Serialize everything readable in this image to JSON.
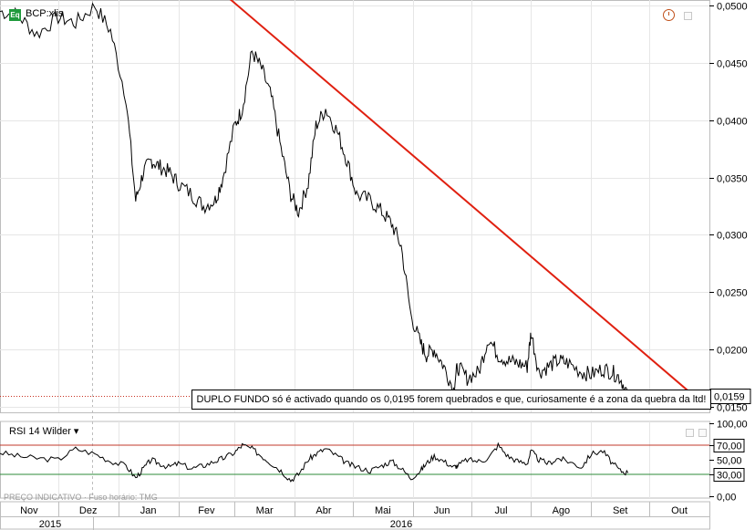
{
  "header": {
    "symbol_badge": "Eq",
    "symbol": "BCP:xlis"
  },
  "annotation": "DUPLO FUNDO só é activado quando os 0,0195 forem quebrados e que, curiosamente é a zona da quebra da ltd!",
  "rsi": {
    "label": "RSI 14 Wilder ▾"
  },
  "footer": {
    "text": "PREÇO INDICATIVO · Fuso horário: TMG"
  },
  "colors": {
    "price_line": "#000000",
    "trendline": "#e02010",
    "last_price_line": "#c83020",
    "rsi_upper": "#c0392b",
    "rsi_lower": "#2e8b3a"
  },
  "chart_data": [
    {
      "type": "line",
      "title": "BCP:xlis",
      "x_axis": {
        "months": [
          "Nov",
          "Dez",
          "Jan",
          "Fev",
          "Mar",
          "Abr",
          "Mai",
          "Jun",
          "Jul",
          "Ago",
          "Set",
          "Out"
        ],
        "years": [
          "2015",
          "2016"
        ]
      },
      "y_axis": {
        "ticks": [
          "0,0500",
          "0,0450",
          "0,0400",
          "0,0350",
          "0,0300",
          "0,0250",
          "0,0200",
          "0,0150"
        ],
        "tick_values": [
          0.05,
          0.045,
          0.04,
          0.035,
          0.03,
          0.025,
          0.02,
          0.015
        ],
        "range": [
          0.0145,
          0.0505
        ]
      },
      "last_price": {
        "value": 0.0159,
        "label": "0,0159"
      },
      "series": [
        {
          "x": [
            "2015-11-01",
            "2015-11-10",
            "2015-11-20",
            "2015-12-01",
            "2015-12-10",
            "2015-12-20",
            "2015-12-28",
            "2016-01-05",
            "2016-01-10",
            "2016-01-14",
            "2016-01-18",
            "2016-01-22",
            "2016-01-27",
            "2016-02-01",
            "2016-02-08",
            "2016-02-14",
            "2016-02-20",
            "2016-02-24",
            "2016-03-01",
            "2016-03-05",
            "2016-03-10",
            "2016-03-15",
            "2016-03-20",
            "2016-03-25",
            "2016-03-30",
            "2016-04-03",
            "2016-04-08",
            "2016-04-12",
            "2016-04-17",
            "2016-04-23",
            "2016-04-28",
            "2016-05-03",
            "2016-05-10",
            "2016-05-16",
            "2016-05-21",
            "2016-05-26",
            "2016-05-31",
            "2016-06-05",
            "2016-06-08",
            "2016-06-12",
            "2016-06-17",
            "2016-06-22",
            "2016-06-24",
            "2016-06-29",
            "2016-07-05",
            "2016-07-10",
            "2016-07-15",
            "2016-07-20",
            "2016-07-25",
            "2016-07-30",
            "2016-08-01",
            "2016-08-05",
            "2016-08-10",
            "2016-08-15",
            "2016-08-20",
            "2016-08-27",
            "2016-09-01",
            "2016-09-07",
            "2016-09-12",
            "2016-09-16",
            "2016-09-20"
          ],
          "y": [
            0.0495,
            0.0492,
            0.0475,
            0.049,
            0.0485,
            0.05,
            0.0478,
            0.042,
            0.033,
            0.0355,
            0.0365,
            0.036,
            0.0355,
            0.0345,
            0.0335,
            0.0325,
            0.033,
            0.035,
            0.0395,
            0.041,
            0.046,
            0.0445,
            0.042,
            0.0375,
            0.0335,
            0.032,
            0.0345,
            0.0395,
            0.041,
            0.039,
            0.0365,
            0.0335,
            0.033,
            0.032,
            0.031,
            0.029,
            0.023,
            0.0205,
            0.0195,
            0.02,
            0.0185,
            0.0165,
            0.0185,
            0.0175,
            0.018,
            0.021,
            0.0195,
            0.019,
            0.0188,
            0.0185,
            0.0215,
            0.018,
            0.0185,
            0.019,
            0.0188,
            0.018,
            0.0178,
            0.0183,
            0.018,
            0.0175,
            0.016
          ]
        }
      ],
      "trendline": {
        "x": [
          "2016-02-22",
          "2016-10-25"
        ],
        "y": [
          0.0514,
          0.0158
        ]
      }
    },
    {
      "type": "line",
      "title": "RSI 14 Wilder",
      "y_axis": {
        "ticks": [
          "100,00",
          "70,00",
          "50,00",
          "30,00",
          "0,00"
        ],
        "tick_values": [
          100,
          70,
          50,
          30,
          0
        ],
        "range": [
          0,
          100
        ]
      },
      "levels": [
        70,
        30
      ],
      "series": [
        {
          "x": [
            "2015-11-01",
            "2015-11-10",
            "2015-11-20",
            "2015-12-01",
            "2015-12-10",
            "2015-12-20",
            "2015-12-28",
            "2016-01-05",
            "2016-01-10",
            "2016-01-14",
            "2016-01-18",
            "2016-01-22",
            "2016-01-27",
            "2016-02-01",
            "2016-02-08",
            "2016-02-14",
            "2016-02-20",
            "2016-02-24",
            "2016-03-01",
            "2016-03-05",
            "2016-03-10",
            "2016-03-15",
            "2016-03-20",
            "2016-03-25",
            "2016-03-30",
            "2016-04-03",
            "2016-04-08",
            "2016-04-12",
            "2016-04-17",
            "2016-04-23",
            "2016-04-28",
            "2016-05-03",
            "2016-05-10",
            "2016-05-16",
            "2016-05-21",
            "2016-05-26",
            "2016-05-31",
            "2016-06-05",
            "2016-06-08",
            "2016-06-12",
            "2016-06-17",
            "2016-06-22",
            "2016-06-24",
            "2016-06-29",
            "2016-07-05",
            "2016-07-10",
            "2016-07-15",
            "2016-07-20",
            "2016-07-25",
            "2016-07-30",
            "2016-08-01",
            "2016-08-05",
            "2016-08-10",
            "2016-08-15",
            "2016-08-20",
            "2016-08-27",
            "2016-09-01",
            "2016-09-07",
            "2016-09-12",
            "2016-09-16",
            "2016-09-20"
          ],
          "y": [
            60,
            55,
            52,
            50,
            65,
            58,
            48,
            42,
            25,
            38,
            50,
            45,
            40,
            45,
            38,
            42,
            48,
            52,
            60,
            70,
            65,
            55,
            45,
            35,
            22,
            30,
            50,
            58,
            65,
            55,
            45,
            40,
            35,
            42,
            48,
            38,
            25,
            35,
            45,
            55,
            48,
            40,
            42,
            50,
            48,
            52,
            70,
            55,
            48,
            45,
            62,
            50,
            45,
            52,
            48,
            40,
            58,
            62,
            45,
            35,
            32
          ]
        }
      ]
    }
  ]
}
